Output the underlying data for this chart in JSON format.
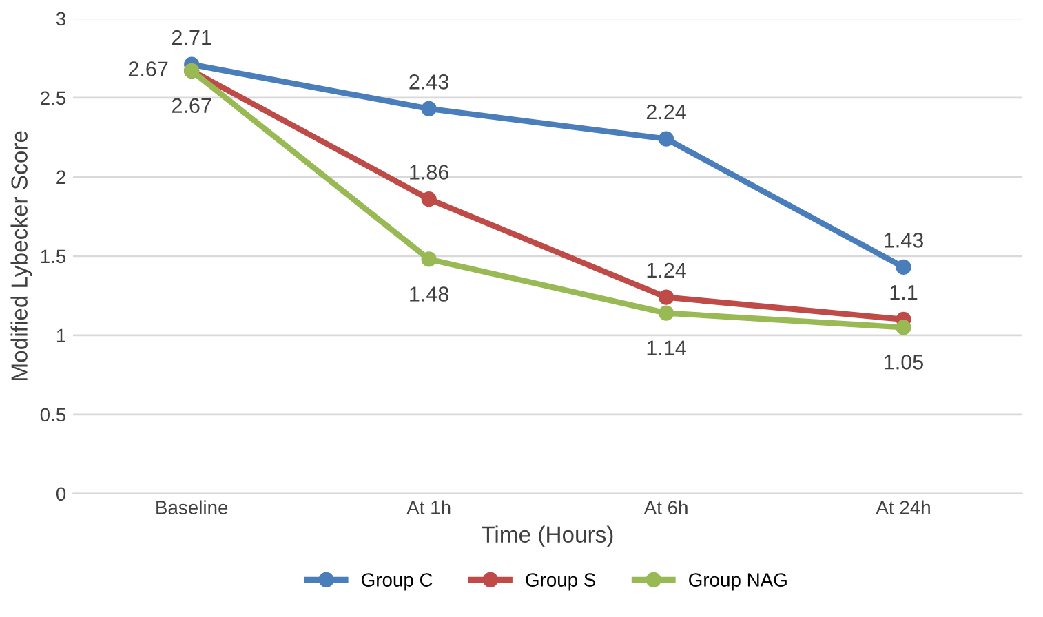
{
  "chart_data": {
    "type": "line",
    "xlabel": "Time (Hours)",
    "ylabel": "Modified Lybecker Score",
    "categories": [
      "Baseline",
      "At 1h",
      "At 6h",
      "At 24h"
    ],
    "series": [
      {
        "name": "Group C",
        "color": "#4a7ebb",
        "values": [
          2.71,
          2.43,
          2.24,
          1.43
        ]
      },
      {
        "name": "Group S",
        "color": "#be4b48",
        "values": [
          2.67,
          1.86,
          1.24,
          1.1
        ]
      },
      {
        "name": "Group NAG",
        "color": "#98b954",
        "values": [
          2.67,
          1.48,
          1.14,
          1.05
        ]
      }
    ],
    "ylim": [
      0,
      3
    ],
    "yticks": [
      0,
      0.5,
      1,
      1.5,
      2,
      2.5,
      3
    ],
    "grid": "y",
    "legend": "bottom",
    "marker": "circle",
    "line_style": "solid",
    "data_labels": true
  }
}
